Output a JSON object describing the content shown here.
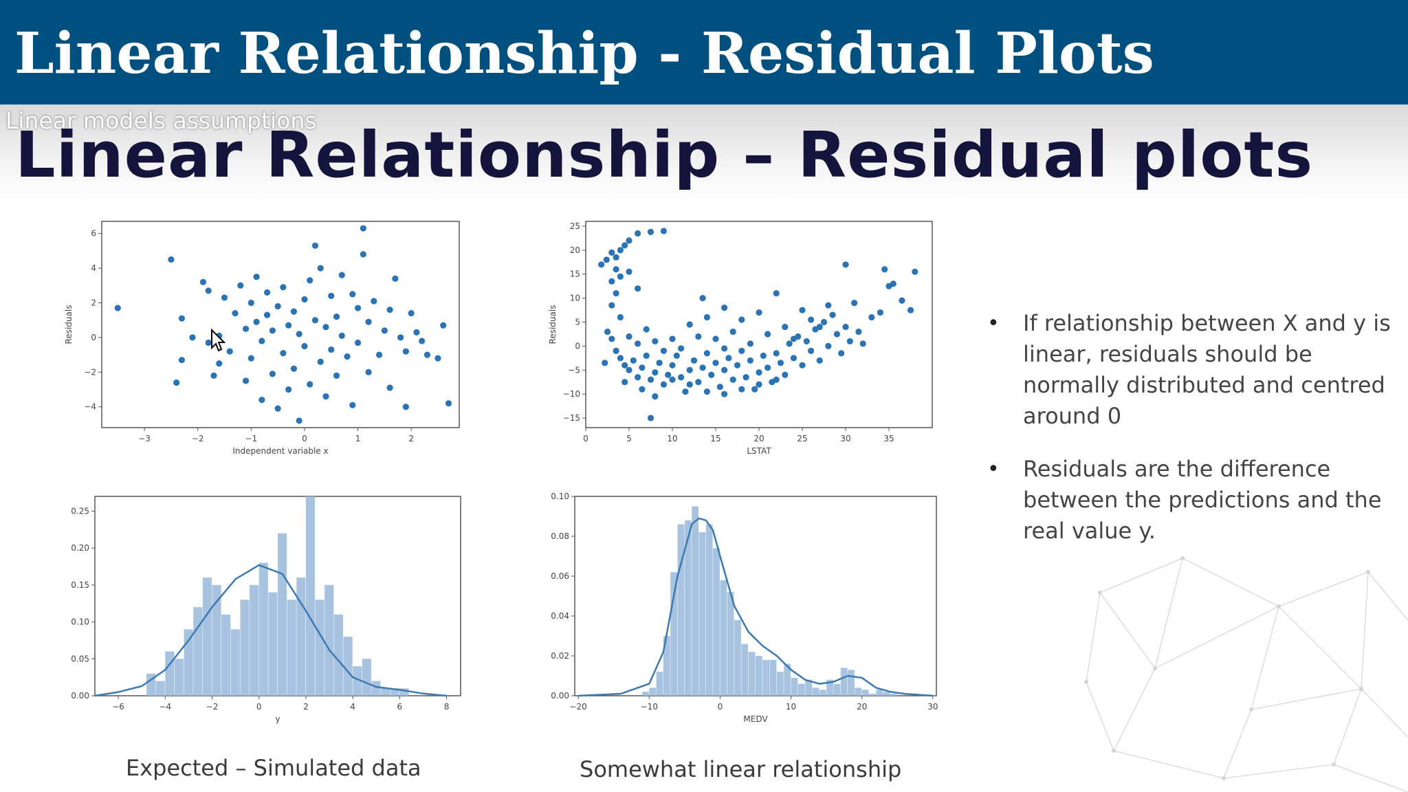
{
  "header": {
    "title": "Linear Relationship - Residual Plots"
  },
  "slide": {
    "section_label": "Linear models assumptions",
    "title": "Linear Relationship – Residual plots",
    "bullets": [
      "If relationship between X and y is linear, residuals should be normally distributed and centred around 0",
      "Residuals are the difference between the predictions and the real value y."
    ],
    "captions": {
      "left": "Expected – Simulated data",
      "right": "Somewhat linear relationship"
    }
  },
  "colors": {
    "header_bg": "#00507f",
    "point": "#2b73b3",
    "hist_bar": "#9fbddc",
    "kde_line": "#3b79b0",
    "title_text": "#14143c"
  },
  "icons": {
    "bullet": "bullet-dot-icon",
    "cursor": "mouse-pointer-icon"
  },
  "chart_data": [
    {
      "type": "scatter",
      "id": "sim-scatter",
      "xlabel": "Independent variable x",
      "ylabel": "Residuals",
      "xlim": [
        -3.8,
        2.9
      ],
      "ylim": [
        -5.2,
        6.7
      ],
      "xticks": [
        -3,
        -2,
        -1,
        0,
        1,
        2
      ],
      "yticks": [
        -4,
        -2,
        0,
        2,
        4,
        6
      ],
      "points": [
        [
          -3.5,
          1.7
        ],
        [
          -2.5,
          4.5
        ],
        [
          -2.4,
          -2.6
        ],
        [
          -2.3,
          -1.3
        ],
        [
          -2.3,
          1.1
        ],
        [
          -2.1,
          0.0
        ],
        [
          -1.9,
          3.2
        ],
        [
          -1.8,
          2.7
        ],
        [
          -1.8,
          -0.3
        ],
        [
          -1.7,
          -2.2
        ],
        [
          -1.6,
          -1.5
        ],
        [
          -1.6,
          0.1
        ],
        [
          -1.5,
          2.3
        ],
        [
          -1.4,
          -0.8
        ],
        [
          -1.3,
          1.4
        ],
        [
          -1.2,
          3.0
        ],
        [
          -1.1,
          -2.5
        ],
        [
          -1.1,
          0.5
        ],
        [
          -1.0,
          2.0
        ],
        [
          -1.0,
          -1.2
        ],
        [
          -0.9,
          3.5
        ],
        [
          -0.9,
          0.9
        ],
        [
          -0.8,
          -3.6
        ],
        [
          -0.8,
          -0.2
        ],
        [
          -0.7,
          2.6
        ],
        [
          -0.7,
          1.3
        ],
        [
          -0.6,
          -2.1
        ],
        [
          -0.6,
          0.4
        ],
        [
          -0.5,
          -4.1
        ],
        [
          -0.5,
          1.8
        ],
        [
          -0.4,
          -0.9
        ],
        [
          -0.4,
          2.9
        ],
        [
          -0.3,
          -3.0
        ],
        [
          -0.3,
          0.7
        ],
        [
          -0.2,
          1.5
        ],
        [
          -0.2,
          -1.8
        ],
        [
          -0.1,
          -4.8
        ],
        [
          -0.1,
          0.2
        ],
        [
          0.0,
          2.2
        ],
        [
          0.0,
          -0.5
        ],
        [
          0.1,
          3.3
        ],
        [
          0.1,
          -2.7
        ],
        [
          0.2,
          5.3
        ],
        [
          0.2,
          1.0
        ],
        [
          0.3,
          -1.4
        ],
        [
          0.3,
          4.0
        ],
        [
          0.4,
          0.6
        ],
        [
          0.4,
          -3.4
        ],
        [
          0.5,
          2.4
        ],
        [
          0.5,
          -0.7
        ],
        [
          0.6,
          1.2
        ],
        [
          0.6,
          -2.2
        ],
        [
          0.7,
          3.6
        ],
        [
          0.7,
          0.1
        ],
        [
          0.8,
          -1.1
        ],
        [
          0.9,
          2.5
        ],
        [
          0.9,
          -3.9
        ],
        [
          1.0,
          1.7
        ],
        [
          1.0,
          -0.3
        ],
        [
          1.1,
          6.3
        ],
        [
          1.1,
          4.8
        ],
        [
          1.2,
          0.9
        ],
        [
          1.2,
          -2.0
        ],
        [
          1.3,
          2.1
        ],
        [
          1.4,
          -1.0
        ],
        [
          1.5,
          0.4
        ],
        [
          1.6,
          1.6
        ],
        [
          1.6,
          -2.9
        ],
        [
          1.7,
          3.4
        ],
        [
          1.8,
          0.0
        ],
        [
          1.9,
          -0.8
        ],
        [
          1.9,
          -4.0
        ],
        [
          2.0,
          1.4
        ],
        [
          2.1,
          0.3
        ],
        [
          2.2,
          -0.2
        ],
        [
          2.3,
          -1.0
        ],
        [
          2.5,
          -1.2
        ],
        [
          2.6,
          0.7
        ],
        [
          2.7,
          -3.8
        ]
      ]
    },
    {
      "type": "scatter",
      "id": "lstat-scatter",
      "xlabel": "LSTAT",
      "ylabel": "Residuals",
      "xlim": [
        0,
        40
      ],
      "ylim": [
        -17,
        26
      ],
      "xticks": [
        0,
        5,
        10,
        15,
        20,
        25,
        30,
        35
      ],
      "yticks": [
        -15,
        -10,
        -5,
        0,
        5,
        10,
        15,
        20,
        25
      ],
      "points": [
        [
          1.8,
          17.0
        ],
        [
          2.4,
          18.0
        ],
        [
          3.0,
          19.5
        ],
        [
          3.5,
          18.5
        ],
        [
          4.0,
          20.0
        ],
        [
          4.5,
          21.0
        ],
        [
          5.0,
          22.0
        ],
        [
          6.0,
          23.5
        ],
        [
          7.5,
          23.8
        ],
        [
          9.0,
          24.0
        ],
        [
          3.0,
          13.5
        ],
        [
          3.5,
          11.0
        ],
        [
          3.0,
          8.5
        ],
        [
          4.0,
          6.0
        ],
        [
          2.5,
          3.0
        ],
        [
          3.0,
          1.5
        ],
        [
          3.5,
          -1.0
        ],
        [
          4.0,
          -2.5
        ],
        [
          4.5,
          -4.0
        ],
        [
          5.0,
          -5.0
        ],
        [
          5.5,
          -3.0
        ],
        [
          6.0,
          -6.5
        ],
        [
          6.5,
          -4.5
        ],
        [
          7.0,
          -2.0
        ],
        [
          7.5,
          -7.0
        ],
        [
          8.0,
          -5.5
        ],
        [
          8.5,
          -3.5
        ],
        [
          9.0,
          -8.0
        ],
        [
          9.5,
          -6.0
        ],
        [
          10.0,
          -4.0
        ],
        [
          10.5,
          -2.0
        ],
        [
          11.0,
          -6.5
        ],
        [
          11.5,
          -9.5
        ],
        [
          12.0,
          -5.0
        ],
        [
          12.5,
          -3.0
        ],
        [
          13.0,
          -7.5
        ],
        [
          13.5,
          -4.5
        ],
        [
          14.0,
          -1.5
        ],
        [
          14.5,
          -6.0
        ],
        [
          15.0,
          -3.5
        ],
        [
          15.5,
          -8.5
        ],
        [
          16.0,
          -5.0
        ],
        [
          16.5,
          -2.5
        ],
        [
          17.0,
          -7.0
        ],
        [
          17.5,
          -4.0
        ],
        [
          18.0,
          -1.0
        ],
        [
          18.5,
          -6.5
        ],
        [
          19.0,
          -3.0
        ],
        [
          19.5,
          -9.0
        ],
        [
          20.0,
          -5.5
        ],
        [
          20.5,
          -2.0
        ],
        [
          21.0,
          -4.5
        ],
        [
          21.5,
          -7.5
        ],
        [
          22.0,
          -1.5
        ],
        [
          22.5,
          -3.5
        ],
        [
          23.0,
          -6.0
        ],
        [
          23.5,
          0.5
        ],
        [
          24.0,
          -2.5
        ],
        [
          24.5,
          2.0
        ],
        [
          25.0,
          -4.0
        ],
        [
          25.5,
          1.0
        ],
        [
          26.0,
          -1.0
        ],
        [
          26.5,
          3.5
        ],
        [
          27.0,
          -3.0
        ],
        [
          27.5,
          5.0
        ],
        [
          28.0,
          0.0
        ],
        [
          28.5,
          6.5
        ],
        [
          29.0,
          2.5
        ],
        [
          29.5,
          -1.5
        ],
        [
          30.0,
          4.0
        ],
        [
          30.5,
          1.0
        ],
        [
          31.0,
          9.0
        ],
        [
          31.5,
          3.0
        ],
        [
          32.0,
          0.5
        ],
        [
          33.0,
          6.0
        ],
        [
          34.0,
          7.0
        ],
        [
          34.5,
          16.0
        ],
        [
          35.0,
          12.5
        ],
        [
          35.5,
          13.0
        ],
        [
          36.5,
          9.5
        ],
        [
          37.5,
          7.5
        ],
        [
          38.0,
          15.5
        ],
        [
          30.0,
          17.0
        ],
        [
          7.5,
          -15.0
        ],
        [
          5.0,
          2.0
        ],
        [
          6.0,
          0.5
        ],
        [
          7.0,
          3.5
        ],
        [
          8.0,
          1.0
        ],
        [
          9.0,
          -1.0
        ],
        [
          10.0,
          1.5
        ],
        [
          11.0,
          -0.5
        ],
        [
          12.0,
          4.5
        ],
        [
          13.0,
          2.0
        ],
        [
          14.0,
          6.0
        ],
        [
          15.0,
          1.5
        ],
        [
          16.0,
          -0.5
        ],
        [
          17.0,
          3.0
        ],
        [
          18.0,
          5.5
        ],
        [
          19.0,
          0.5
        ],
        [
          20.0,
          7.0
        ],
        [
          21.0,
          2.5
        ],
        [
          22.0,
          11.0
        ],
        [
          23.0,
          4.0
        ],
        [
          24.0,
          1.5
        ],
        [
          25.0,
          7.5
        ],
        [
          26.0,
          5.5
        ],
        [
          27.0,
          4.0
        ],
        [
          28.0,
          8.5
        ],
        [
          13.5,
          10.0
        ],
        [
          16.0,
          8.0
        ],
        [
          4.0,
          14.5
        ],
        [
          5.0,
          15.5
        ],
        [
          6.0,
          12.0
        ],
        [
          3.5,
          16.0
        ],
        [
          2.2,
          -3.5
        ],
        [
          4.5,
          -7.5
        ],
        [
          6.5,
          -9.0
        ],
        [
          8.0,
          -10.5
        ],
        [
          10.0,
          -7.0
        ],
        [
          12.0,
          -8.0
        ],
        [
          14.0,
          -9.5
        ],
        [
          16.0,
          -10.0
        ],
        [
          18.0,
          -9.0
        ],
        [
          20.0,
          -8.0
        ],
        [
          22.0,
          -7.0
        ]
      ]
    },
    {
      "type": "bar",
      "id": "y-hist",
      "xlabel": "y",
      "xlim": [
        -7,
        8.6
      ],
      "ylim": [
        0,
        0.27
      ],
      "xticks": [
        -6,
        -4,
        -2,
        0,
        2,
        4,
        6,
        8
      ],
      "yticks": [
        0.0,
        0.05,
        0.1,
        0.15,
        0.2,
        0.25
      ],
      "bin_start": -4.8,
      "bin_width": 0.4,
      "values": [
        0.03,
        0.02,
        0.06,
        0.05,
        0.09,
        0.12,
        0.16,
        0.15,
        0.11,
        0.09,
        0.13,
        0.15,
        0.18,
        0.14,
        0.22,
        0.13,
        0.16,
        0.27,
        0.13,
        0.15,
        0.11,
        0.08,
        0.04,
        0.05,
        0.02,
        0.01,
        0.01,
        0.01
      ],
      "kde_x": [
        -7,
        -6,
        -5,
        -4,
        -3,
        -2,
        -1,
        0,
        1,
        2,
        3,
        4,
        5,
        6,
        7,
        8
      ],
      "kde_y": [
        0.0,
        0.005,
        0.013,
        0.035,
        0.075,
        0.12,
        0.158,
        0.177,
        0.165,
        0.115,
        0.062,
        0.025,
        0.012,
        0.008,
        0.003,
        0.0
      ]
    },
    {
      "type": "bar",
      "id": "medv-hist",
      "xlabel": "MEDV",
      "xlim": [
        -20.5,
        30.5
      ],
      "ylim": [
        0,
        0.1
      ],
      "xticks": [
        -20,
        -10,
        0,
        10,
        20,
        30
      ],
      "yticks": [
        0.0,
        0.02,
        0.04,
        0.06,
        0.08,
        0.1
      ],
      "bin_start": -11,
      "bin_width": 1,
      "values": [
        0.002,
        0.004,
        0.012,
        0.03,
        0.062,
        0.086,
        0.088,
        0.095,
        0.082,
        0.086,
        0.074,
        0.058,
        0.052,
        0.038,
        0.026,
        0.022,
        0.02,
        0.018,
        0.018,
        0.012,
        0.016,
        0.009,
        0.006,
        0.008,
        0.004,
        0.003,
        0.008,
        0.006,
        0.014,
        0.013,
        0.004,
        0.003,
        0.001,
        0.003,
        0.002,
        0.001
      ],
      "kde_x": [
        -20,
        -14,
        -10,
        -8,
        -6,
        -4,
        -3,
        -2,
        -1,
        0,
        2,
        4,
        6,
        8,
        10,
        12,
        14,
        16,
        18,
        20,
        22,
        24,
        26,
        30
      ],
      "kde_y": [
        0.0,
        0.001,
        0.006,
        0.022,
        0.06,
        0.086,
        0.089,
        0.088,
        0.083,
        0.07,
        0.045,
        0.032,
        0.025,
        0.02,
        0.013,
        0.008,
        0.006,
        0.007,
        0.01,
        0.009,
        0.004,
        0.002,
        0.001,
        0.0
      ]
    }
  ]
}
